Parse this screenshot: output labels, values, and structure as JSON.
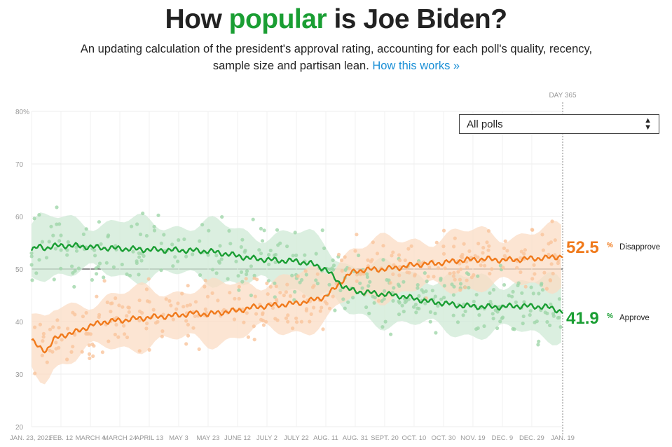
{
  "header": {
    "title_pre": "How ",
    "title_hl": "popular",
    "title_post": " is Joe Biden?",
    "subtitle": "An updating calculation of the president's approval rating, accounting for each poll's quality, recency, sample size and partisan lean.",
    "link_label": "How this works »"
  },
  "filter": {
    "selected": "All polls"
  },
  "day_marker": "DAY 365",
  "colors": {
    "approve": "#1a9e33",
    "disapprove": "#f07a1c",
    "approve_band": "#cfead5",
    "disapprove_band": "#fbdcc4"
  },
  "chart_data": {
    "type": "line",
    "ylim": [
      20,
      80
    ],
    "yticks": [
      "80%",
      "70",
      "60",
      "50",
      "40",
      "30",
      "20"
    ],
    "ytick_values": [
      80,
      70,
      60,
      50,
      40,
      30,
      20
    ],
    "xtick_labels": [
      "JAN. 23, 2021",
      "FEB. 12",
      "MARCH 4",
      "MARCH 24",
      "APRIL 13",
      "MAY 3",
      "MAY 23",
      "JUNE 12",
      "JULY 2",
      "JULY 22",
      "AUG. 11",
      "AUG. 31",
      "SEPT. 20",
      "OCT. 10",
      "OCT. 30",
      "NOV. 19",
      "DEC. 9",
      "DEC. 29",
      "JAN. 19"
    ],
    "x_days": [
      0,
      20,
      40,
      60,
      80,
      100,
      120,
      140,
      160,
      180,
      200,
      220,
      240,
      260,
      280,
      300,
      320,
      340,
      361
    ],
    "series": [
      {
        "name": "Disapprove",
        "final_value": "52.5",
        "x": [
          0,
          5,
          10,
          15,
          20,
          30,
          40,
          50,
          60,
          70,
          80,
          90,
          100,
          110,
          120,
          130,
          140,
          150,
          160,
          170,
          180,
          190,
          200,
          205,
          210,
          215,
          220,
          225,
          230,
          240,
          250,
          260,
          270,
          280,
          290,
          300,
          310,
          320,
          330,
          340,
          350,
          361
        ],
        "values": [
          36.5,
          35.0,
          34.5,
          36.5,
          37.3,
          38.0,
          39.2,
          40.0,
          40.2,
          40.5,
          40.8,
          41.0,
          41.2,
          41.6,
          41.4,
          41.8,
          42.1,
          42.7,
          43.0,
          43.2,
          43.5,
          44.0,
          44.8,
          46.0,
          47.5,
          48.8,
          49.6,
          49.8,
          49.9,
          50.0,
          50.3,
          50.8,
          51.0,
          51.2,
          51.6,
          51.8,
          51.9,
          51.7,
          51.8,
          52.0,
          52.1,
          52.5
        ]
      },
      {
        "name": "Approve",
        "final_value": "41.9",
        "x": [
          0,
          5,
          10,
          15,
          20,
          30,
          40,
          50,
          60,
          70,
          80,
          90,
          100,
          110,
          120,
          130,
          140,
          150,
          160,
          170,
          180,
          190,
          200,
          205,
          210,
          215,
          220,
          225,
          230,
          240,
          250,
          260,
          270,
          280,
          290,
          300,
          310,
          320,
          330,
          340,
          350,
          361
        ],
        "values": [
          53.5,
          54.3,
          54.0,
          54.3,
          54.5,
          54.4,
          54.2,
          54.0,
          53.9,
          53.8,
          53.7,
          53.6,
          53.6,
          53.5,
          53.4,
          53.0,
          52.5,
          52.0,
          51.8,
          51.6,
          51.5,
          51.0,
          50.0,
          48.5,
          47.2,
          46.2,
          45.8,
          45.6,
          45.5,
          45.2,
          44.9,
          44.4,
          43.8,
          43.5,
          43.1,
          42.9,
          42.8,
          42.8,
          43.0,
          42.9,
          42.8,
          41.9
        ]
      }
    ]
  }
}
